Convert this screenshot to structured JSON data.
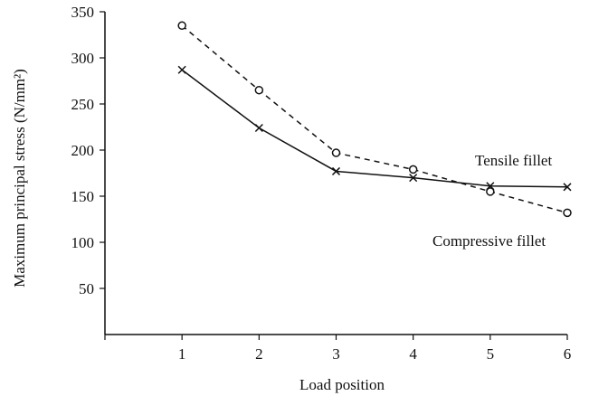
{
  "chart_data": {
    "type": "line",
    "title": "",
    "xlabel": "Load position",
    "ylabel": "Maximum principal stress (N/mm²)",
    "x": [
      1,
      2,
      3,
      4,
      5,
      6
    ],
    "xlim": [
      0,
      6
    ],
    "ylim": [
      0,
      350
    ],
    "xticks": [
      1,
      2,
      3,
      4,
      5,
      6
    ],
    "yticks": [
      50,
      100,
      150,
      200,
      250,
      300,
      350
    ],
    "grid": false,
    "series": [
      {
        "name": "Tensile fillet",
        "values": [
          335,
          265,
          197,
          179,
          155,
          132
        ],
        "line_style": "dashed",
        "marker": "circle",
        "color": "#111111"
      },
      {
        "name": "Compressive fillet",
        "values": [
          287,
          224,
          177,
          170,
          161,
          160
        ],
        "line_style": "solid",
        "marker": "x",
        "color": "#111111"
      }
    ],
    "annotations": [
      "Tensile fillet",
      "Compressive fillet"
    ]
  }
}
